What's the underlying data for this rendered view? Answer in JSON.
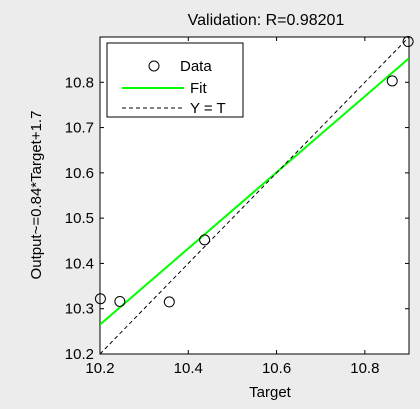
{
  "chart_data": {
    "type": "scatter",
    "title": "Validation: R=0.98201",
    "xlabel": "Target",
    "ylabel": "Output~=0.84*Target+1.7",
    "xlim": [
      10.2,
      10.9
    ],
    "ylim": [
      10.2,
      10.9
    ],
    "xticks": [
      "10.2",
      "10.4",
      "10.6",
      "10.8"
    ],
    "xtick_values": [
      10.2,
      10.4,
      10.6,
      10.8
    ],
    "yticks": [
      "10.2",
      "10.3",
      "10.4",
      "10.5",
      "10.6",
      "10.7",
      "10.8"
    ],
    "ytick_values": [
      10.2,
      10.3,
      10.4,
      10.5,
      10.6,
      10.7,
      10.8
    ],
    "grid": false,
    "legend_position": "top-left",
    "series": [
      {
        "name": "Data",
        "kind": "scatter",
        "marker": "circle-open",
        "color": "#000000",
        "x": [
          10.201,
          10.245,
          10.357,
          10.437,
          10.862,
          10.898
        ],
        "y": [
          10.322,
          10.316,
          10.315,
          10.452,
          10.803,
          10.89
        ]
      },
      {
        "name": "Fit",
        "kind": "line",
        "color": "#00ff00",
        "x": [
          10.2,
          10.9
        ],
        "y": [
          10.265,
          10.853
        ]
      },
      {
        "name": "Y = T",
        "kind": "line",
        "dash": "dashed",
        "color": "#000000",
        "x": [
          10.2,
          10.9
        ],
        "y": [
          10.2,
          10.9
        ]
      }
    ]
  }
}
